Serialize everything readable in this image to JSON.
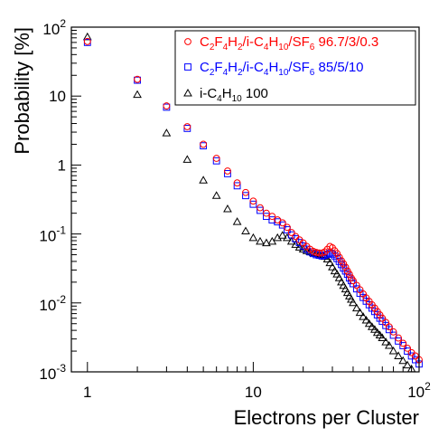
{
  "chart_data": {
    "type": "scatter",
    "xscale": "log",
    "yscale": "log",
    "xlim": [
      0.8,
      100
    ],
    "ylim": [
      0.001,
      100
    ],
    "xlabel": "Electrons per Cluster",
    "ylabel": "Probability [%]",
    "x_tick_labels": [
      {
        "value": 1,
        "label": "1"
      },
      {
        "value": 10,
        "label": "10"
      },
      {
        "value": 100,
        "base": "10",
        "exp": "2"
      }
    ],
    "y_tick_labels": [
      {
        "value": 0.001,
        "base": "10",
        "exp": "-3"
      },
      {
        "value": 0.01,
        "base": "10",
        "exp": "-2"
      },
      {
        "value": 0.1,
        "base": "10",
        "exp": "-1"
      },
      {
        "value": 1,
        "label": "1"
      },
      {
        "value": 10,
        "label": "10"
      },
      {
        "value": 100,
        "base": "10",
        "exp": "2"
      }
    ],
    "legend_position": "top-right",
    "series": [
      {
        "marker": "circle",
        "color": "#ff0000",
        "legend_parts": [
          {
            "t": "C"
          },
          {
            "t": "2",
            "sub": true
          },
          {
            "t": "F"
          },
          {
            "t": "4",
            "sub": true
          },
          {
            "t": "H"
          },
          {
            "t": "2",
            "sub": true
          },
          {
            "t": "/i-C"
          },
          {
            "t": "4",
            "sub": true
          },
          {
            "t": "H"
          },
          {
            "t": "10",
            "sub": true
          },
          {
            "t": "/SF"
          },
          {
            "t": "6",
            "sub": true
          },
          {
            "t": " 96.7/3/0.3"
          }
        ],
        "x": [
          1,
          2,
          3,
          4,
          5,
          6,
          7,
          8,
          9,
          10,
          11,
          12,
          13,
          14,
          15,
          16,
          17,
          18,
          19,
          20,
          21,
          22,
          23,
          24,
          25,
          26,
          27,
          28,
          29,
          30,
          31,
          32,
          33,
          34,
          35,
          36,
          37,
          38,
          39,
          40,
          42,
          44,
          46,
          48,
          50,
          52,
          54,
          56,
          58,
          60,
          63,
          66,
          70,
          75,
          80,
          85,
          90,
          95,
          100
        ],
        "y": [
          62,
          17.5,
          7.2,
          3.6,
          2.0,
          1.25,
          0.82,
          0.55,
          0.4,
          0.3,
          0.24,
          0.2,
          0.18,
          0.16,
          0.145,
          0.125,
          0.105,
          0.092,
          0.082,
          0.074,
          0.066,
          0.06,
          0.056,
          0.054,
          0.053,
          0.053,
          0.055,
          0.06,
          0.066,
          0.063,
          0.057,
          0.052,
          0.046,
          0.041,
          0.037,
          0.033,
          0.029,
          0.026,
          0.023,
          0.021,
          0.018,
          0.0155,
          0.0135,
          0.0118,
          0.0105,
          0.0094,
          0.0084,
          0.0075,
          0.0067,
          0.006,
          0.0052,
          0.0045,
          0.0038,
          0.0031,
          0.0026,
          0.0022,
          0.0019,
          0.0017,
          0.0015
        ]
      },
      {
        "marker": "square",
        "color": "#0000ff",
        "legend_parts": [
          {
            "t": "C"
          },
          {
            "t": "2",
            "sub": true
          },
          {
            "t": "F"
          },
          {
            "t": "4",
            "sub": true
          },
          {
            "t": "H"
          },
          {
            "t": "2",
            "sub": true
          },
          {
            "t": "/i-C"
          },
          {
            "t": "4",
            "sub": true
          },
          {
            "t": "H"
          },
          {
            "t": "10",
            "sub": true
          },
          {
            "t": "/SF"
          },
          {
            "t": "6",
            "sub": true
          },
          {
            "t": " 85/5/10"
          }
        ],
        "x": [
          1,
          2,
          3,
          4,
          5,
          6,
          7,
          8,
          9,
          10,
          11,
          12,
          13,
          14,
          15,
          16,
          17,
          18,
          19,
          20,
          21,
          22,
          23,
          24,
          25,
          26,
          27,
          28,
          29,
          30,
          31,
          32,
          33,
          34,
          35,
          36,
          37,
          38,
          39,
          40,
          42,
          44,
          46,
          48,
          50,
          52,
          54,
          56,
          58,
          60,
          63,
          66,
          70,
          75,
          80,
          85,
          90,
          95,
          100
        ],
        "y": [
          60,
          17.0,
          6.9,
          3.4,
          1.9,
          1.15,
          0.75,
          0.5,
          0.36,
          0.27,
          0.22,
          0.18,
          0.16,
          0.15,
          0.135,
          0.115,
          0.097,
          0.085,
          0.075,
          0.067,
          0.06,
          0.055,
          0.052,
          0.05,
          0.049,
          0.048,
          0.049,
          0.051,
          0.053,
          0.051,
          0.048,
          0.044,
          0.04,
          0.036,
          0.032,
          0.029,
          0.026,
          0.023,
          0.021,
          0.019,
          0.016,
          0.0138,
          0.012,
          0.0106,
          0.0094,
          0.0084,
          0.0075,
          0.0067,
          0.006,
          0.0054,
          0.0047,
          0.0041,
          0.0034,
          0.0028,
          0.0024,
          0.002,
          0.0017,
          0.0015,
          0.0013
        ]
      },
      {
        "marker": "triangle",
        "color": "#000000",
        "legend_parts": [
          {
            "t": "i-C"
          },
          {
            "t": "4",
            "sub": true
          },
          {
            "t": "H"
          },
          {
            "t": "10",
            "sub": true
          },
          {
            "t": " 100"
          }
        ],
        "x": [
          1,
          2,
          3,
          4,
          5,
          6,
          7,
          8,
          9,
          10,
          11,
          12,
          13,
          14,
          15,
          16,
          17,
          18,
          19,
          20,
          21,
          22,
          23,
          24,
          25,
          26,
          27,
          28,
          29,
          30,
          31,
          32,
          33,
          34,
          35,
          36,
          37,
          38,
          39,
          40,
          42,
          44,
          46,
          48,
          50,
          52,
          54,
          56,
          58,
          60,
          63,
          66,
          70,
          75,
          80,
          85,
          90,
          95,
          100
        ],
        "y": [
          72,
          10.5,
          2.9,
          1.2,
          0.6,
          0.36,
          0.23,
          0.15,
          0.11,
          0.088,
          0.078,
          0.074,
          0.078,
          0.088,
          0.095,
          0.088,
          0.078,
          0.07,
          0.064,
          0.06,
          0.057,
          0.055,
          0.053,
          0.052,
          0.051,
          0.05,
          0.047,
          0.043,
          0.038,
          0.033,
          0.029,
          0.026,
          0.023,
          0.02,
          0.0178,
          0.0158,
          0.014,
          0.0125,
          0.0112,
          0.01,
          0.0084,
          0.0072,
          0.0063,
          0.0056,
          0.005,
          0.0045,
          0.0041,
          0.0037,
          0.0034,
          0.0031,
          0.0027,
          0.0024,
          0.002,
          0.0017,
          0.00145,
          0.00125,
          0.0011,
          0.00098,
          0.00088
        ]
      }
    ]
  }
}
